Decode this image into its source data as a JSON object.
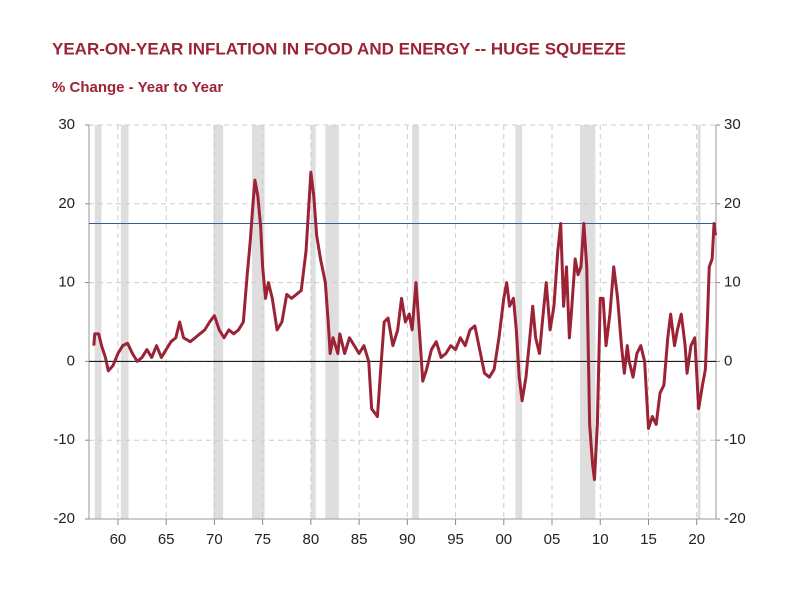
{
  "chart_data": {
    "type": "line",
    "title": "YEAR-ON-YEAR INFLATION IN FOOD AND ENERGY -- HUGE SQUEEZE",
    "subtitle": "% Change - Year to Year",
    "color": "#9b2335",
    "x": [
      1957.5,
      1957.6,
      1958.0,
      1958.3,
      1958.7,
      1959.0,
      1959.5,
      1960.0,
      1960.5,
      1961.0,
      1961.5,
      1962.0,
      1962.5,
      1963.0,
      1963.5,
      1964.0,
      1964.5,
      1965.0,
      1965.5,
      1966.0,
      1966.4,
      1966.8,
      1967.5,
      1968.0,
      1968.5,
      1969.0,
      1969.5,
      1970.0,
      1970.5,
      1971.0,
      1971.5,
      1972.0,
      1972.5,
      1973.0,
      1973.4,
      1973.7,
      1974.0,
      1974.2,
      1974.5,
      1974.8,
      1975.0,
      1975.3,
      1975.6,
      1976.0,
      1976.5,
      1977.0,
      1977.5,
      1978.0,
      1978.5,
      1979.0,
      1979.5,
      1979.8,
      1980.0,
      1980.3,
      1980.6,
      1981.0,
      1981.5,
      1981.8,
      1982.0,
      1982.3,
      1982.8,
      1983.0,
      1983.5,
      1984.0,
      1984.5,
      1985.0,
      1985.5,
      1986.0,
      1986.3,
      1986.6,
      1986.9,
      1987.3,
      1987.6,
      1988.0,
      1988.5,
      1989.0,
      1989.4,
      1989.8,
      1990.2,
      1990.5,
      1990.9,
      1991.3,
      1991.6,
      1992.0,
      1992.5,
      1993.0,
      1993.5,
      1994.0,
      1994.5,
      1995.0,
      1995.5,
      1996.0,
      1996.5,
      1997.0,
      1997.5,
      1998.0,
      1998.5,
      1999.0,
      1999.5,
      2000.0,
      2000.3,
      2000.6,
      2001.0,
      2001.3,
      2001.6,
      2001.9,
      2002.3,
      2002.7,
      2003.0,
      2003.3,
      2003.7,
      2004.0,
      2004.4,
      2004.8,
      2005.2,
      2005.6,
      2005.9,
      2006.2,
      2006.5,
      2006.8,
      2007.0,
      2007.4,
      2007.7,
      2008.0,
      2008.3,
      2008.6,
      2008.9,
      2009.2,
      2009.4,
      2009.7,
      2010.0,
      2010.3,
      2010.6,
      2011.0,
      2011.4,
      2011.8,
      2012.2,
      2012.5,
      2012.8,
      2013.0,
      2013.4,
      2013.8,
      2014.2,
      2014.6,
      2015.0,
      2015.4,
      2015.8,
      2016.2,
      2016.6,
      2017.0,
      2017.3,
      2017.7,
      2018.0,
      2018.4,
      2018.8,
      2019.0,
      2019.4,
      2019.8,
      2020.2,
      2020.6,
      2020.9,
      2021.1,
      2021.3,
      2021.6,
      2021.8,
      2021.95
    ],
    "values": [
      2,
      3.5,
      3.5,
      2,
      0.5,
      -1.2,
      -0.5,
      1,
      2,
      2.3,
      1,
      0,
      0.5,
      1.5,
      0.5,
      2,
      0.5,
      1.5,
      2.5,
      3,
      5,
      3,
      2.5,
      3,
      3.5,
      4,
      5,
      5.8,
      4,
      3,
      4,
      3.5,
      4,
      5,
      11,
      15,
      20,
      23,
      21,
      17,
      12,
      8,
      10,
      8,
      4,
      5,
      8.5,
      8,
      8.5,
      9,
      14,
      20,
      24,
      21,
      16,
      13,
      10,
      5,
      1,
      3,
      1,
      3.5,
      1,
      3,
      2,
      1,
      2,
      0,
      -6,
      -6.5,
      -7,
      0,
      5,
      5.5,
      2,
      4,
      8,
      5,
      6,
      4,
      10,
      3,
      -2.5,
      -1,
      1.5,
      2.5,
      0.5,
      1,
      2,
      1.5,
      3,
      2,
      4,
      4.5,
      1.5,
      -1.5,
      -2,
      -1,
      3,
      8,
      10,
      7,
      8,
      4,
      -2,
      -5,
      -2,
      3,
      7,
      3,
      1,
      5,
      10,
      4,
      7,
      14,
      17.5,
      7,
      12,
      3,
      6,
      13,
      11,
      12,
      17.5,
      12,
      -8,
      -13,
      -15,
      -8,
      8,
      8,
      2,
      6,
      12,
      8,
      2,
      -1.5,
      2,
      0,
      -2,
      1,
      2,
      0,
      -8.5,
      -7,
      -8,
      -4,
      -3,
      3,
      6,
      2,
      4,
      6,
      2,
      -1.5,
      2,
      3,
      -6,
      -3,
      -1,
      5,
      12,
      13,
      17.5,
      16
    ],
    "recessions": [
      [
        1957.6,
        1958.3
      ],
      [
        1960.3,
        1961.1
      ],
      [
        1969.9,
        1970.9
      ],
      [
        1973.9,
        1975.2
      ],
      [
        1980.0,
        1980.5
      ],
      [
        1981.5,
        1982.9
      ],
      [
        1990.5,
        1991.2
      ],
      [
        2001.2,
        2001.9
      ],
      [
        2007.9,
        2009.5
      ],
      [
        2020.1,
        2020.4
      ]
    ],
    "reference_line": {
      "value": 17.5,
      "color": "#3a5a9a"
    },
    "xlim": [
      1957,
      2022
    ],
    "ylim": [
      -20,
      30
    ],
    "xticks": [
      {
        "value": 1960,
        "label": "60"
      },
      {
        "value": 1965,
        "label": "65"
      },
      {
        "value": 1970,
        "label": "70"
      },
      {
        "value": 1975,
        "label": "75"
      },
      {
        "value": 1980,
        "label": "80"
      },
      {
        "value": 1985,
        "label": "85"
      },
      {
        "value": 1990,
        "label": "90"
      },
      {
        "value": 1995,
        "label": "95"
      },
      {
        "value": 2000,
        "label": "00"
      },
      {
        "value": 2005,
        "label": "05"
      },
      {
        "value": 2010,
        "label": "10"
      },
      {
        "value": 2015,
        "label": "15"
      },
      {
        "value": 2020,
        "label": "20"
      }
    ],
    "yticks": [
      -20,
      -10,
      0,
      10,
      20,
      30
    ],
    "y2ticks": [
      -20,
      -10,
      0,
      10,
      20,
      30
    ],
    "grid": true
  }
}
